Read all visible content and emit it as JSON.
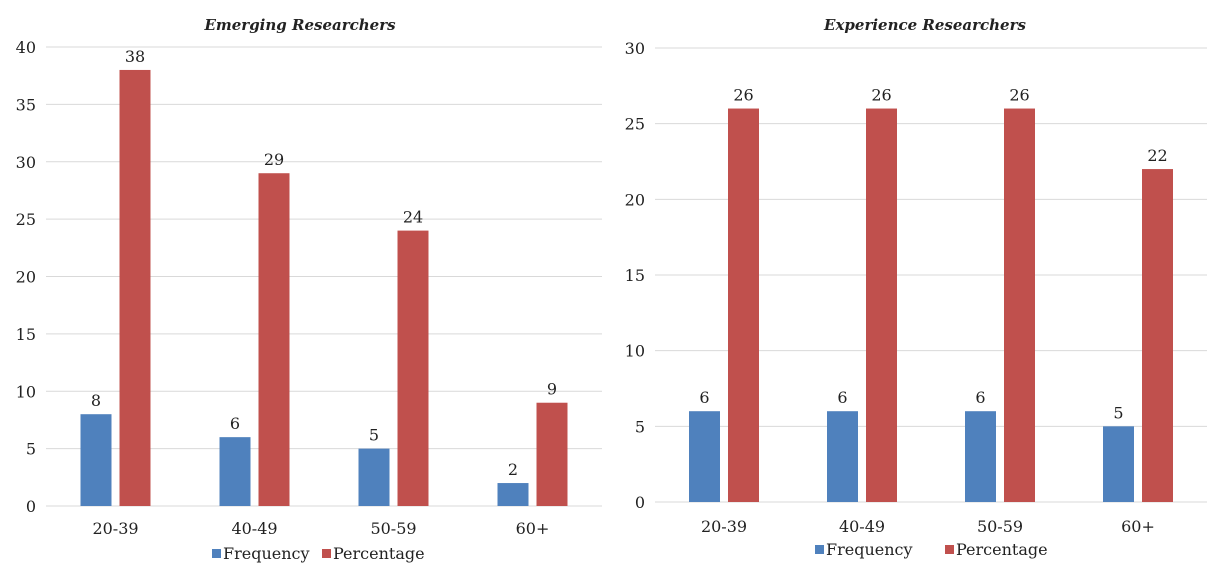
{
  "chart_data": [
    {
      "type": "bar",
      "title": "Emerging Researchers",
      "categories": [
        "20-39",
        "40-49",
        "50-59",
        "60+"
      ],
      "series": [
        {
          "name": "Frequency",
          "values": [
            8,
            6,
            5,
            2
          ],
          "color": "#4f81bd"
        },
        {
          "name": "Percentage",
          "values": [
            38,
            29,
            24,
            9
          ],
          "color": "#c0504d"
        }
      ],
      "ylim": [
        0,
        40
      ],
      "yticks": [
        0,
        5,
        10,
        15,
        20,
        25,
        30,
        35,
        40
      ],
      "grid": true,
      "legend": "bottom"
    },
    {
      "type": "bar",
      "title": "Experience Researchers",
      "categories": [
        "20-39",
        "40-49",
        "50-59",
        "60+"
      ],
      "series": [
        {
          "name": "Frequency",
          "values": [
            6,
            6,
            6,
            5
          ],
          "color": "#4f81bd"
        },
        {
          "name": "Percentage",
          "values": [
            26,
            26,
            26,
            22
          ],
          "color": "#c0504d"
        }
      ],
      "ylim": [
        0,
        30
      ],
      "yticks": [
        0,
        5,
        10,
        15,
        20,
        25,
        30
      ],
      "grid": true,
      "legend": "bottom"
    }
  ]
}
